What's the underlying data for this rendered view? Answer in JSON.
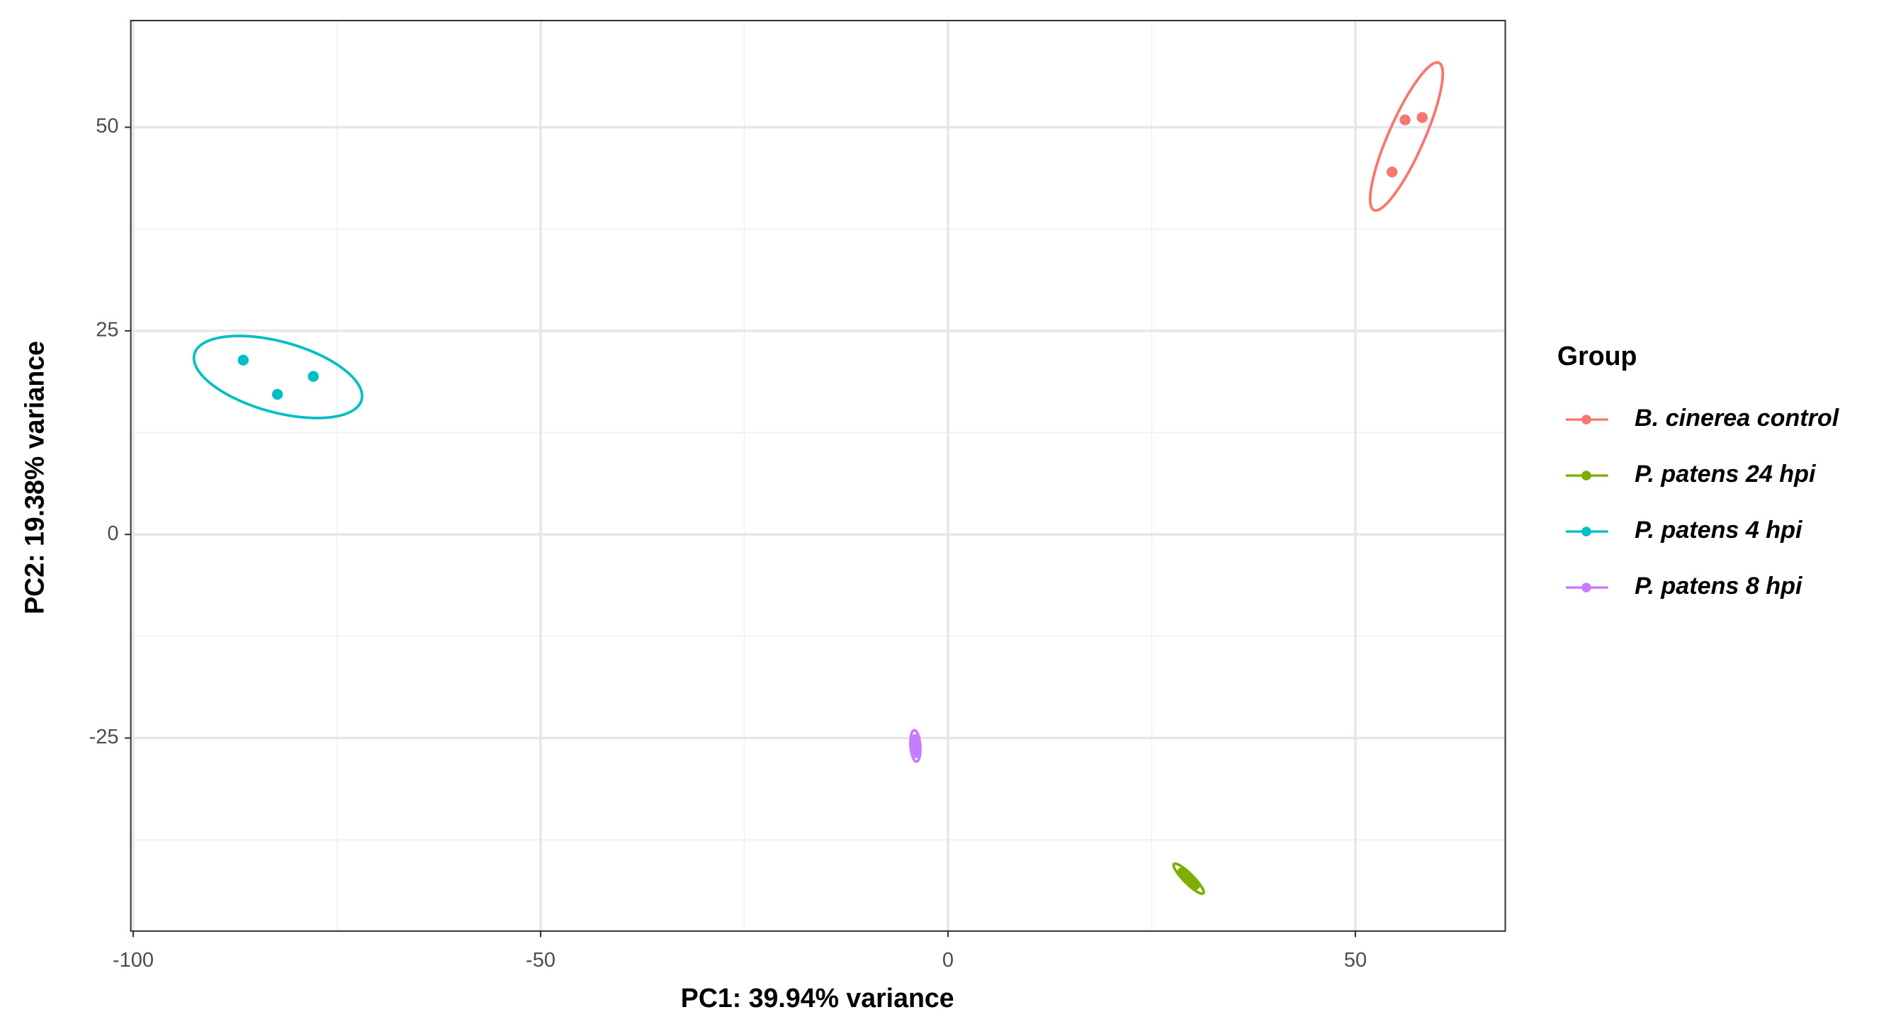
{
  "chart_data": {
    "type": "scatter",
    "xlabel": "PC1: 39.94% variance",
    "ylabel": "PC2: 19.38% variance",
    "xlim": [
      -100.3,
      68.4
    ],
    "ylim": [
      -48.7,
      63.1
    ],
    "xticks": [
      -100,
      -50,
      0,
      50
    ],
    "yticks": [
      -25,
      0,
      25,
      50
    ],
    "x_minor_grid": [
      -75,
      -25,
      25
    ],
    "y_minor_grid": [
      -37.5,
      -12.5,
      12.5,
      37.5
    ],
    "grid": true,
    "ellipses": true,
    "legend_title": "Group",
    "legend": "right",
    "series": [
      {
        "name": "B. cinerea control",
        "color": "#F8766D",
        "x": [
          56.1,
          58.2,
          54.5
        ],
        "values": [
          50.9,
          51.2,
          44.5
        ]
      },
      {
        "name": "P. patens 24 hpi",
        "color": "#7CAE00",
        "x": [
          28.8,
          29.5,
          30.3
        ],
        "values": [
          -41.5,
          -42.3,
          -43.0
        ]
      },
      {
        "name": "P. patens 4 hpi",
        "color": "#00BFC4",
        "x": [
          -86.5,
          -82.3,
          -77.9
        ],
        "values": [
          21.4,
          17.2,
          19.4
        ]
      },
      {
        "name": "P. patens 8 hpi",
        "color": "#C77CFF",
        "x": [
          -4.0,
          -3.9,
          -4.1
        ],
        "values": [
          -25.2,
          -26.8,
          -25.9
        ]
      }
    ]
  }
}
